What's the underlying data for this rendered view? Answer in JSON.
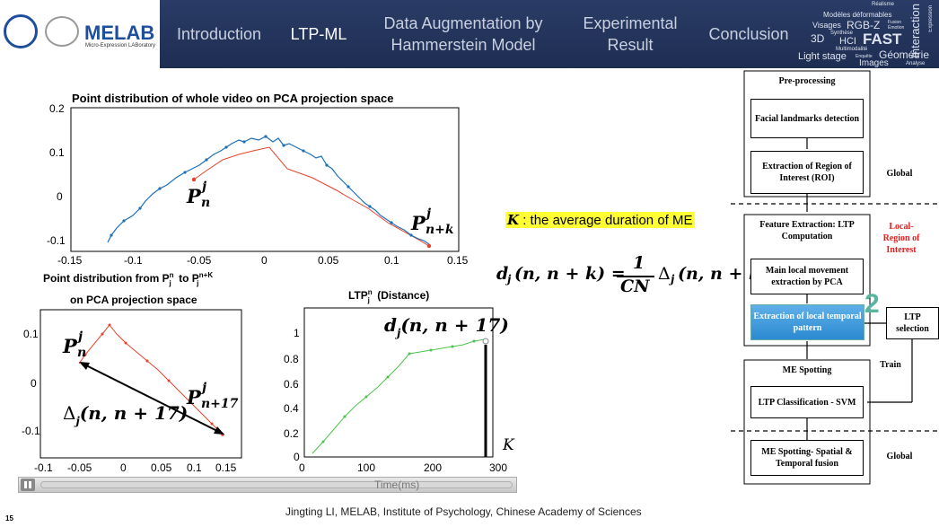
{
  "header": {
    "logo_text": "MELAB",
    "logo_sub": "Micro-Expression LABoratory",
    "nav": [
      {
        "label": "Introduction"
      },
      {
        "label": "LTP-ML"
      },
      {
        "label": "Data Augmentation by Hammerstein Model"
      },
      {
        "label": "Experimental Result"
      },
      {
        "label": "Conclusion"
      }
    ],
    "word_cloud": [
      "Réalisme",
      "Modèles déformables",
      "Visages",
      "RGB-Z",
      "Fusion",
      "Émotion",
      "3D",
      "Synthèse",
      "HCI",
      "FAST",
      "Multimodalité",
      "Light stage",
      "Enquête",
      "Géométrie",
      "Images",
      "Analyse",
      "Interaction",
      "Expression"
    ]
  },
  "plot_top": {
    "title": "Point distribution of whole video on PCA projection space",
    "yticks": [
      "0.2",
      "0.1",
      "0",
      "-0.1"
    ],
    "xticks": [
      "-0.15",
      "-0.1",
      "-0.05",
      "0",
      "0.05",
      "0.1",
      "0.15"
    ],
    "label_p_start": "P",
    "label_p_start_sup": "j",
    "label_p_start_sub": "n",
    "label_p_end": "P",
    "label_p_end_sup": "j",
    "label_p_end_sub": "n+k"
  },
  "plot_left": {
    "title_line1_a": "Point distribution from P",
    "title_line1_sup1": "n",
    "title_line1_sub1": "j",
    "title_line1_b": " to P",
    "title_line1_sup2": "n+K",
    "title_line1_sub2": "j",
    "title_line2": "on PCA projection space",
    "yticks": [
      "0.1",
      "0",
      "-0.1"
    ],
    "xticks": [
      "-0.1",
      "-0.05",
      "0",
      "0.05",
      "0.1",
      "0.15"
    ],
    "label_p_start": "P",
    "label_p_start_sup": "j",
    "label_p_start_sub": "n",
    "label_p_end": "P",
    "label_p_end_sup": "j",
    "label_p_end_sub": "n+17",
    "delta_label": "Δ",
    "delta_sub": "j",
    "delta_args": "(n, n + 17)"
  },
  "plot_right": {
    "title_a": "LTP",
    "title_sup": "n",
    "title_sub": "j",
    "title_b": " (Distance)",
    "yticks": [
      "1",
      "0.8",
      "0.6",
      "0.4",
      "0.2",
      "0"
    ],
    "xticks": [
      "0",
      "100",
      "200",
      "300"
    ],
    "d_label": "d",
    "d_sub": "j",
    "d_args": "(n, n + 17)",
    "k_label": "K"
  },
  "center": {
    "k_def_sym": "K",
    "k_def_text": " : the average duration of ME",
    "formula_lhs": "d",
    "formula_lhs_sub": "j",
    "formula_lhs_args": "(n, n + k) = ",
    "formula_num": "1",
    "formula_den": "CN",
    "formula_rhs": "Δ",
    "formula_rhs_sub": "j",
    "formula_rhs_args": "(n, n + k)"
  },
  "flowchart": {
    "preprocessing": "Pre-processing",
    "facial_landmarks": "Facial landmarks detection",
    "roi": "Extraction of Region of Interest (ROI)",
    "global1": "Global",
    "feature_extraction": "Feature Extraction: LTP Computation",
    "local_region": "Local-Region of Interest",
    "pca": "Main local movement extraction by PCA",
    "ltp_extract": "Extraction of local temporal pattern",
    "ltp_selection": "LTP selection",
    "step_number": "2",
    "train": "Train",
    "me_spotting": "ME Spotting",
    "svm": "LTP Classification - SVM",
    "fusion": "ME Spotting- Spatial & Temporal fusion",
    "global2": "Global"
  },
  "media": {
    "time_label": "Time(ms)"
  },
  "footer": {
    "slide_number": "15",
    "credit": "Jingting LI, MELAB, Institute of Psychology, Chinese Academy of Sciences"
  }
}
